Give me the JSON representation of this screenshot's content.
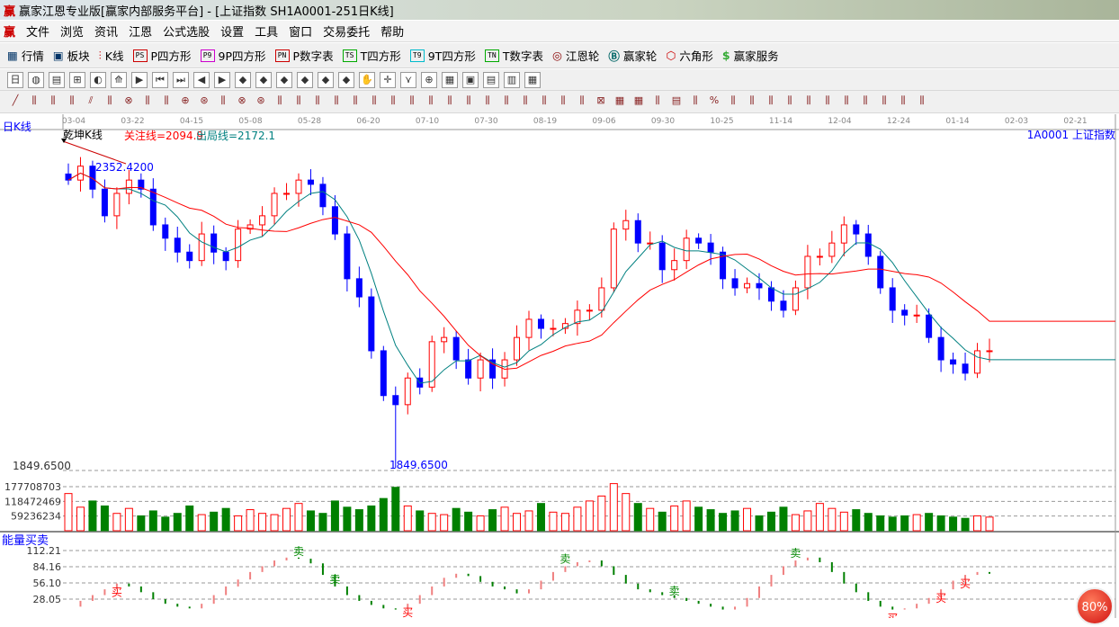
{
  "window": {
    "title": "赢家江恩专业版[赢家内部服务平台] - [上证指数  SH1A0001-251日K线]",
    "logo": "赢"
  },
  "menu": [
    "文件",
    "浏览",
    "资讯",
    "江恩",
    "公式选股",
    "设置",
    "工具",
    "窗口",
    "交易委托",
    "帮助"
  ],
  "toolbar": [
    {
      "icon": "PS",
      "label": "P四方形",
      "color": "#c00"
    },
    {
      "icon": "P9",
      "label": "9P四方形",
      "color": "#c0c"
    },
    {
      "icon": "PN",
      "label": "P数字表",
      "color": "#c00"
    },
    {
      "icon": "TS",
      "label": "T四方形",
      "color": "#0a0"
    },
    {
      "icon": "T9",
      "label": "9T四方形",
      "color": "#0bc"
    },
    {
      "icon": "TN",
      "label": "T数字表",
      "color": "#0a0"
    }
  ],
  "toolbar_lead": [
    {
      "label": "行情",
      "icon": "table-icon"
    },
    {
      "label": "板块",
      "icon": "blocks-icon"
    },
    {
      "label": "K线",
      "icon": "candles-icon"
    }
  ],
  "toolbar_tail": [
    {
      "label": "江恩轮",
      "icon": "gann-wheel-icon"
    },
    {
      "label": "赢家轮",
      "icon": "big-wheel-icon"
    },
    {
      "label": "六角形",
      "icon": "hexagon-icon"
    },
    {
      "label": "赢家服务",
      "icon": "dollar-icon"
    }
  ],
  "period_label": "日K线",
  "indicator_name": "乾坤K线",
  "focus_line": "关注线=2094.9",
  "exit_line": "出局线=2172.1",
  "symbol": "1A0001  上证指数",
  "high_label": "2352.4200",
  "low_label": "1849.6500",
  "low_axis_label": "1849.6500",
  "colors": {
    "up": "#ff0000",
    "down": "#0000ff",
    "ma_short": "#008080",
    "ma_long": "#ff0000",
    "vol_down": "#008000"
  },
  "chart_data": {
    "type": "candlestick",
    "dates": [
      "03-04",
      "03-22",
      "04-15",
      "05-08",
      "05-28",
      "06-20",
      "07-10",
      "07-30",
      "08-19",
      "09-06",
      "09-30",
      "10-25",
      "11-14",
      "12-04",
      "12-24",
      "01-14",
      "02-03",
      "02-21"
    ],
    "closes": [
      2325,
      2348,
      2310,
      2266,
      2303,
      2325,
      2310,
      2251,
      2229,
      2206,
      2192,
      2236,
      2206,
      2192,
      2244,
      2251,
      2266,
      2303,
      2303,
      2325,
      2318,
      2281,
      2236,
      2162,
      2132,
      2043,
      1969,
      1954,
      1998,
      1983,
      2058,
      2065,
      2028,
      1998,
      2028,
      1998,
      2028,
      2065,
      2095,
      2080,
      2080,
      2088,
      2110,
      2110,
      2147,
      2244,
      2258,
      2221,
      2221,
      2177,
      2192,
      2229,
      2221,
      2206,
      2162,
      2147,
      2154,
      2147,
      2125,
      2110,
      2147,
      2199,
      2199,
      2221,
      2251,
      2236,
      2199,
      2147,
      2110,
      2102,
      2102,
      2065,
      2028,
      2021,
      2006,
      2043,
      2043
    ],
    "high": 2352.42,
    "low": 1849.65,
    "volume_axis": [
      177708703,
      118472469,
      59236234
    ],
    "volumes": [
      150,
      95,
      120,
      100,
      70,
      90,
      60,
      80,
      55,
      70,
      100,
      65,
      75,
      90,
      60,
      85,
      70,
      65,
      90,
      110,
      80,
      70,
      120,
      95,
      85,
      100,
      130,
      175,
      100,
      80,
      70,
      65,
      90,
      75,
      60,
      85,
      95,
      70,
      80,
      110,
      75,
      70,
      95,
      120,
      140,
      190,
      150,
      110,
      90,
      75,
      100,
      120,
      95,
      85,
      70,
      80,
      90,
      60,
      75,
      95,
      65,
      80,
      110,
      90,
      75,
      85,
      70,
      60,
      55,
      60,
      65,
      70,
      60,
      55,
      50,
      60,
      55
    ],
    "energy_axis": [
      112.21,
      84.16,
      56.1,
      28.05
    ],
    "energy": [
      15,
      25,
      35,
      45,
      55,
      50,
      40,
      28,
      20,
      15,
      12,
      20,
      35,
      50,
      62,
      75,
      85,
      95,
      100,
      98,
      90,
      70,
      50,
      35,
      25,
      18,
      12,
      10,
      20,
      35,
      50,
      65,
      72,
      68,
      58,
      50,
      45,
      38,
      45,
      60,
      75,
      85,
      92,
      95,
      85,
      70,
      55,
      45,
      40,
      35,
      30,
      25,
      20,
      15,
      10,
      15,
      30,
      50,
      70,
      85,
      95,
      100,
      92,
      75,
      55,
      40,
      25,
      15,
      10,
      12,
      20,
      30,
      45,
      60,
      70,
      75,
      72
    ],
    "signals": [
      {
        "i": 4,
        "text": "买"
      },
      {
        "i": 19,
        "text": "卖"
      },
      {
        "i": 22,
        "text": "卖"
      },
      {
        "i": 28,
        "text": "买"
      },
      {
        "i": 41,
        "text": "卖"
      },
      {
        "i": 50,
        "text": "卖"
      },
      {
        "i": 68,
        "text": "买"
      },
      {
        "i": 72,
        "text": "买"
      },
      {
        "i": 74,
        "text": "买"
      },
      {
        "i": 60,
        "text": "卖"
      }
    ]
  },
  "energy_label": "能量买卖",
  "zoom_badge": "80%"
}
